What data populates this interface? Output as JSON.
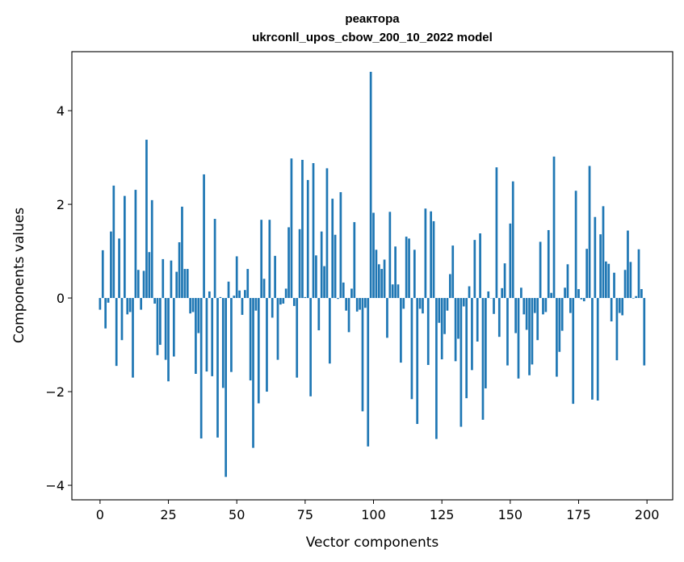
{
  "chart_data": {
    "type": "bar",
    "title_line1": "реактора",
    "title_line2": "ukrconll_upos_cbow_200_10_2022 model",
    "xlabel": "Vector components",
    "ylabel": "Components values",
    "xlim": [
      -10.3,
      209.4
    ],
    "ylim": [
      -4.31,
      5.26
    ],
    "xticks": [
      0,
      25,
      50,
      75,
      100,
      125,
      150,
      175,
      200
    ],
    "xtick_labels": [
      "0",
      "25",
      "50",
      "75",
      "100",
      "125",
      "150",
      "175",
      "200"
    ],
    "yticks": [
      -4,
      -2,
      0,
      2,
      4
    ],
    "ytick_labels": [
      "−4",
      "−2",
      "0",
      "2",
      "4"
    ],
    "grid": false,
    "bar_color": "#1f77b4",
    "values": [
      -0.25,
      1.02,
      -0.65,
      -0.1,
      1.42,
      2.4,
      -1.45,
      1.27,
      -0.9,
      2.18,
      -0.35,
      -0.3,
      -1.7,
      2.31,
      0.6,
      -0.25,
      0.58,
      3.38,
      0.98,
      2.09,
      -0.12,
      -1.22,
      -1.0,
      0.83,
      -1.32,
      -1.78,
      0.8,
      -1.25,
      0.56,
      1.19,
      1.95,
      0.62,
      0.62,
      -0.33,
      -0.3,
      -1.62,
      -0.75,
      -3.0,
      2.64,
      -1.57,
      0.14,
      -1.67,
      1.69,
      -2.98,
      0.02,
      -1.92,
      -3.82,
      0.35,
      -1.58,
      0.05,
      0.89,
      0.16,
      -0.36,
      0.17,
      0.62,
      -1.76,
      -3.2,
      -0.27,
      -2.25,
      1.67,
      0.41,
      -2.0,
      1.67,
      -0.42,
      0.9,
      -1.32,
      -0.14,
      -0.12,
      0.2,
      1.51,
      2.98,
      -0.17,
      -1.7,
      1.47,
      2.95,
      0.02,
      2.52,
      -2.1,
      2.88,
      0.91,
      -0.69,
      1.42,
      0.68,
      2.77,
      -1.4,
      2.12,
      1.35,
      -0.02,
      2.26,
      0.33,
      -0.27,
      -0.73,
      0.2,
      1.62,
      -0.29,
      -0.25,
      -2.42,
      -0.21,
      -3.17,
      4.83,
      1.82,
      1.03,
      0.72,
      0.62,
      0.82,
      -0.85,
      1.84,
      0.29,
      1.1,
      0.29,
      -1.38,
      -0.23,
      1.31,
      1.27,
      -2.16,
      1.03,
      -2.69,
      -0.23,
      -0.33,
      1.91,
      -1.43,
      1.85,
      1.64,
      -3.01,
      -0.53,
      -1.31,
      -0.77,
      -0.27,
      0.51,
      1.12,
      -1.35,
      -0.87,
      -2.75,
      -0.18,
      -2.14,
      0.25,
      -1.54,
      1.24,
      -0.93,
      1.38,
      -2.6,
      -1.93,
      0.14,
      0.0,
      -0.34,
      2.79,
      -0.83,
      0.21,
      0.74,
      -1.44,
      1.59,
      2.49,
      -0.75,
      -1.72,
      0.22,
      -0.35,
      -0.68,
      -1.65,
      -1.42,
      -0.32,
      -0.9,
      1.2,
      -0.35,
      -0.3,
      1.45,
      0.11,
      3.02,
      -1.68,
      -1.15,
      -0.7,
      0.22,
      0.72,
      -0.32,
      -2.26,
      2.29,
      0.19,
      -0.03,
      -0.07,
      1.05,
      2.82,
      -2.17,
      1.73,
      -2.19,
      1.36,
      1.96,
      0.78,
      0.73,
      -0.5,
      0.54,
      -1.33,
      -0.32,
      -0.37,
      0.6,
      1.44,
      0.77,
      -0.01,
      0.04,
      1.04,
      0.19,
      -1.44
    ]
  }
}
